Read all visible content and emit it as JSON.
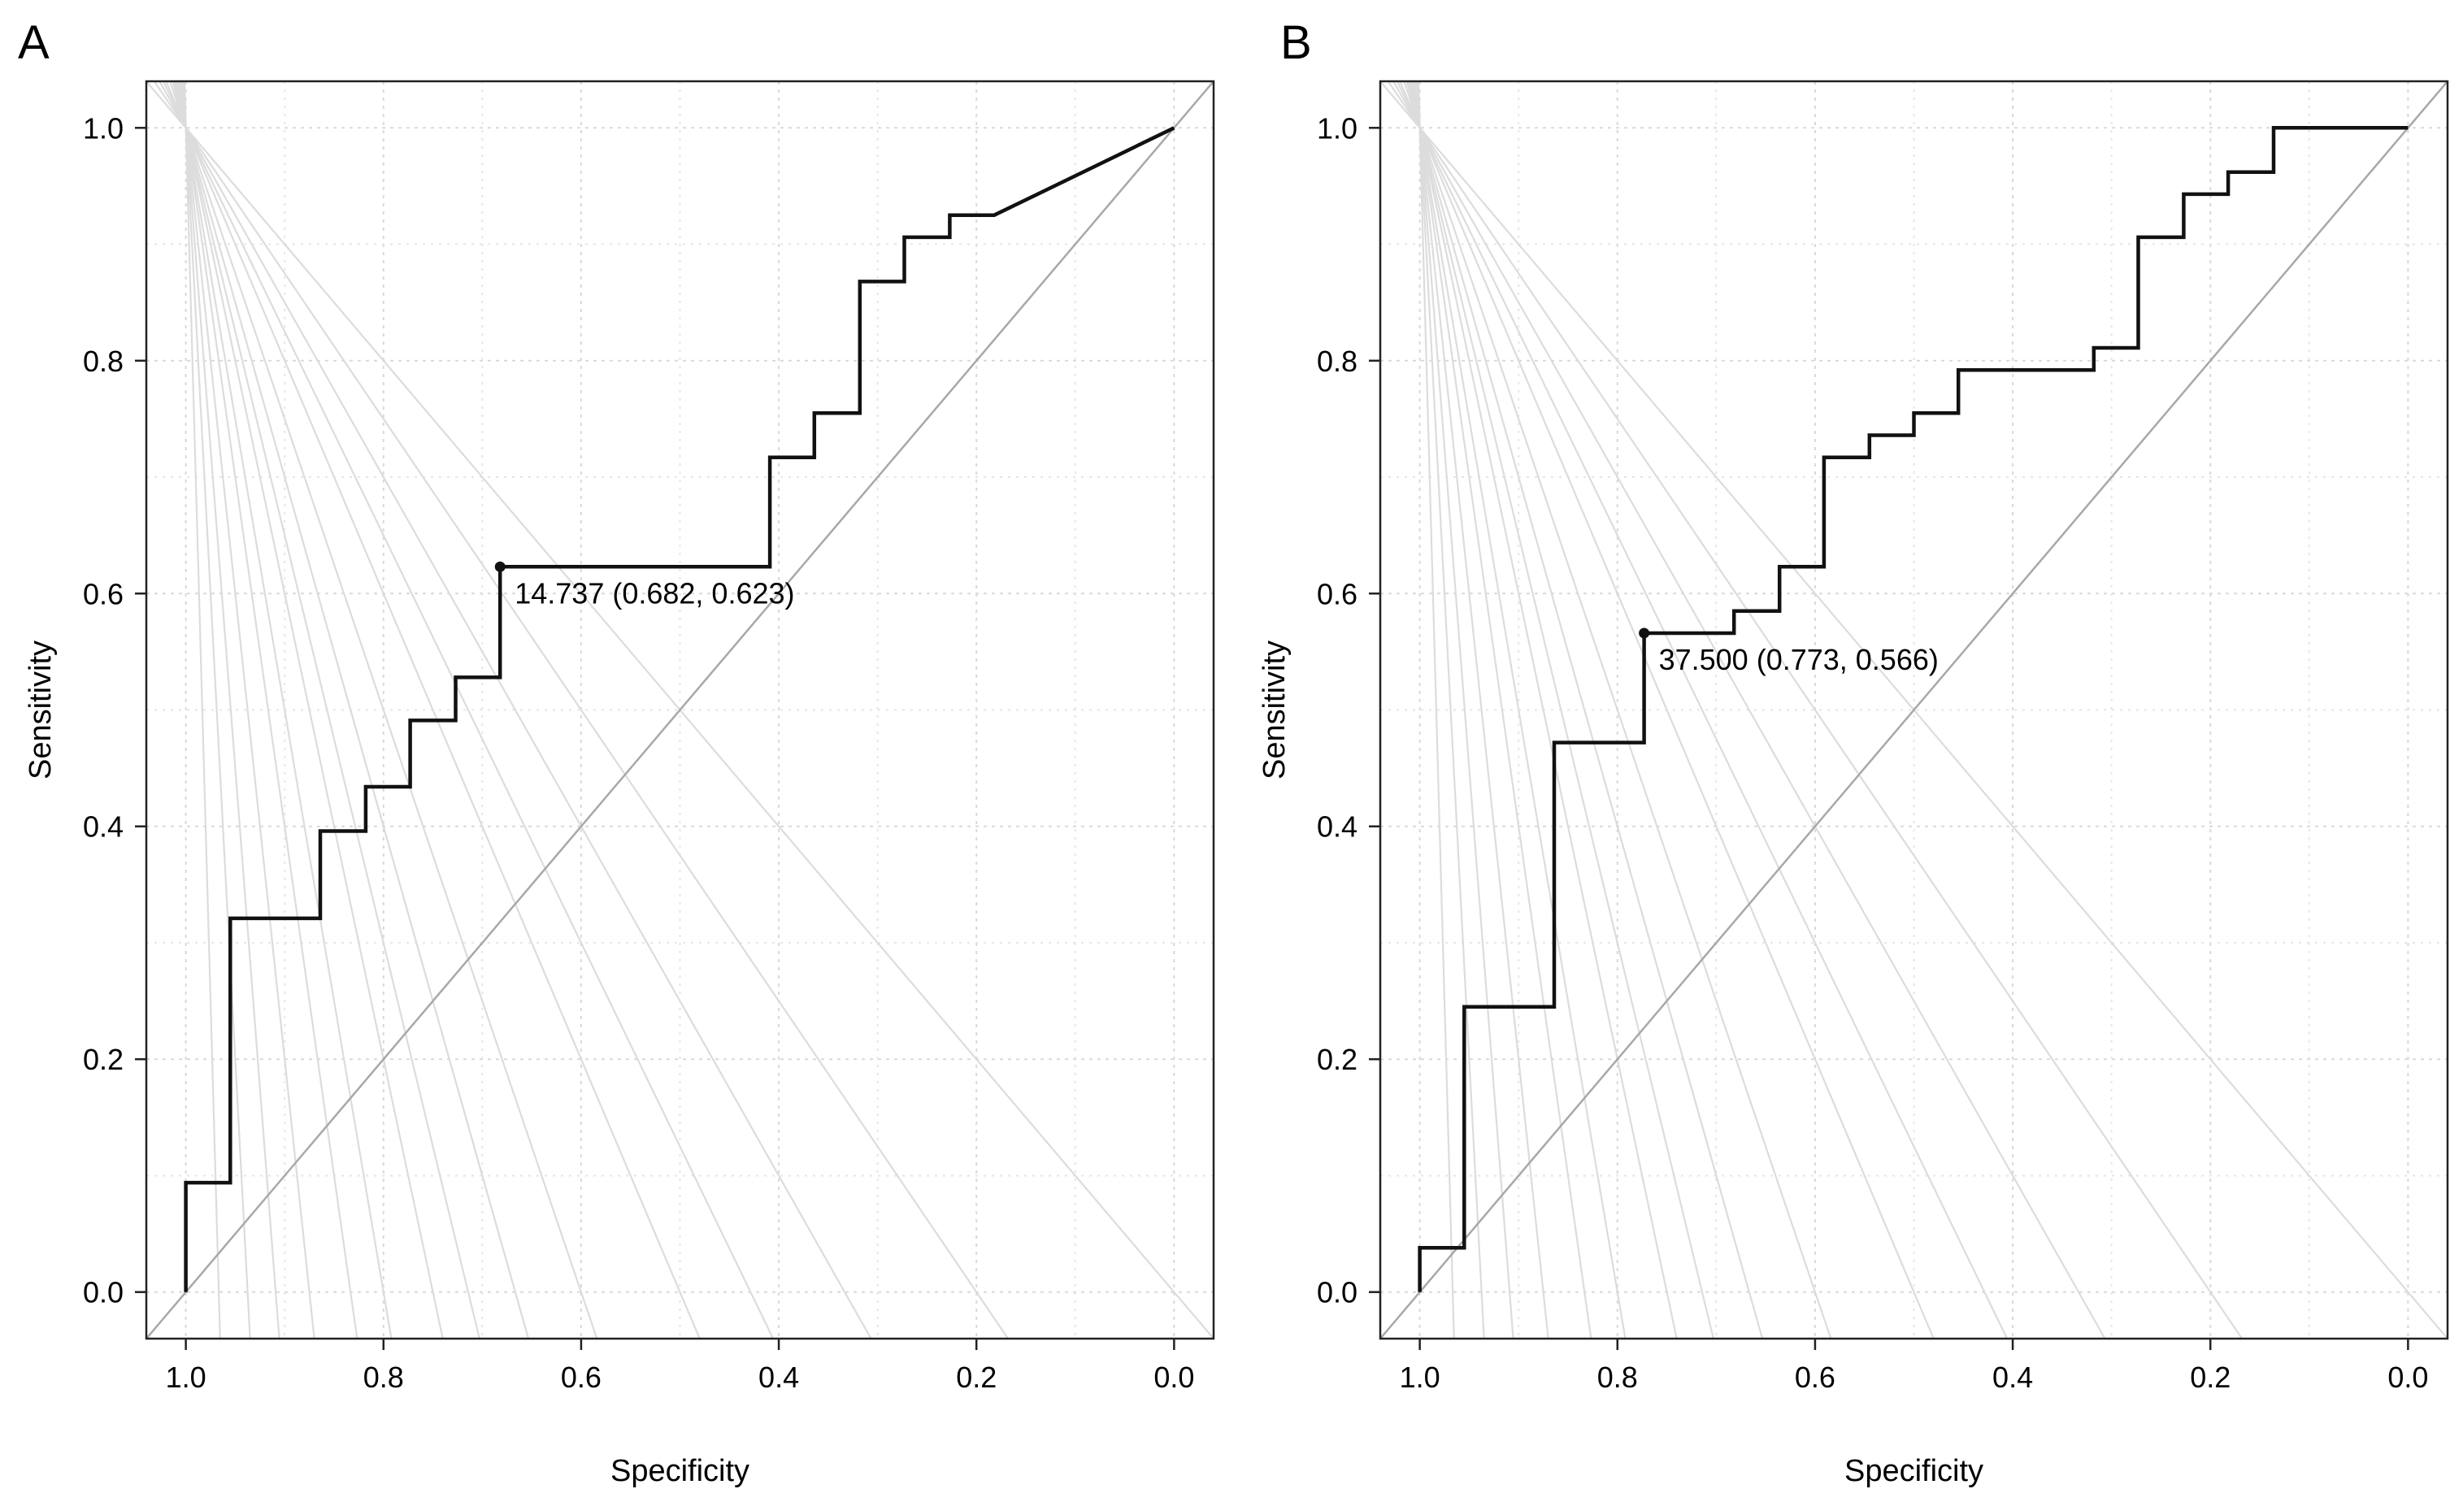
{
  "chart_data": [
    {
      "type": "line",
      "panel_label": "A",
      "xlabel": "Specificity",
      "ylabel": "Sensitivity",
      "xlim": [
        1.04,
        -0.04
      ],
      "ylim": [
        -0.04,
        1.04
      ],
      "x_reversed": true,
      "grid": true,
      "xticks": [
        "1.0",
        "0.8",
        "0.6",
        "0.4",
        "0.2",
        "0.0"
      ],
      "yticks": [
        "0.0",
        "0.2",
        "0.4",
        "0.6",
        "0.8",
        "1.0"
      ],
      "guide_slopes": [
        1,
        1.25,
        1.5,
        1.75,
        2,
        2.5,
        3,
        3.5,
        4,
        5,
        6,
        8,
        11,
        16,
        30
      ],
      "series": [
        {
          "name": "ROC",
          "specificity": [
            1.0,
            1.0,
            0.955,
            0.955,
            0.864,
            0.864,
            0.818,
            0.818,
            0.773,
            0.773,
            0.727,
            0.727,
            0.682,
            0.682,
            0.409,
            0.409,
            0.364,
            0.364,
            0.318,
            0.318,
            0.273,
            0.273,
            0.227,
            0.227,
            0.182,
            0.0
          ],
          "sensitivity": [
            0.0,
            0.094,
            0.094,
            0.321,
            0.321,
            0.396,
            0.396,
            0.434,
            0.434,
            0.491,
            0.491,
            0.528,
            0.528,
            0.623,
            0.623,
            0.717,
            0.717,
            0.755,
            0.755,
            0.868,
            0.868,
            0.906,
            0.906,
            0.925,
            0.925,
            1.0
          ]
        }
      ],
      "best_point": {
        "specificity": 0.682,
        "sensitivity": 0.623,
        "label": "14.737 (0.682, 0.623)"
      }
    },
    {
      "type": "line",
      "panel_label": "B",
      "xlabel": "Specificity",
      "ylabel": "Sensitivity",
      "xlim": [
        1.04,
        -0.04
      ],
      "ylim": [
        -0.04,
        1.04
      ],
      "x_reversed": true,
      "grid": true,
      "xticks": [
        "1.0",
        "0.8",
        "0.6",
        "0.4",
        "0.2",
        "0.0"
      ],
      "yticks": [
        "0.0",
        "0.2",
        "0.4",
        "0.6",
        "0.8",
        "1.0"
      ],
      "guide_slopes": [
        1,
        1.25,
        1.5,
        1.75,
        2,
        2.5,
        3,
        3.5,
        4,
        5,
        6,
        8,
        11,
        16,
        30
      ],
      "series": [
        {
          "name": "ROC",
          "specificity": [
            1.0,
            1.0,
            0.955,
            0.955,
            0.864,
            0.864,
            0.773,
            0.773,
            0.682,
            0.682,
            0.636,
            0.636,
            0.591,
            0.591,
            0.545,
            0.545,
            0.5,
            0.5,
            0.455,
            0.455,
            0.318,
            0.318,
            0.273,
            0.273,
            0.227,
            0.227,
            0.182,
            0.182,
            0.136,
            0.136,
            0.0
          ],
          "sensitivity": [
            0.0,
            0.038,
            0.038,
            0.245,
            0.245,
            0.472,
            0.472,
            0.566,
            0.566,
            0.585,
            0.585,
            0.623,
            0.623,
            0.717,
            0.717,
            0.736,
            0.736,
            0.755,
            0.755,
            0.792,
            0.792,
            0.811,
            0.811,
            0.906,
            0.906,
            0.943,
            0.943,
            0.962,
            0.962,
            1.0,
            1.0
          ]
        }
      ],
      "best_point": {
        "specificity": 0.773,
        "sensitivity": 0.566,
        "label": "37.500 (0.773, 0.566)"
      }
    }
  ]
}
